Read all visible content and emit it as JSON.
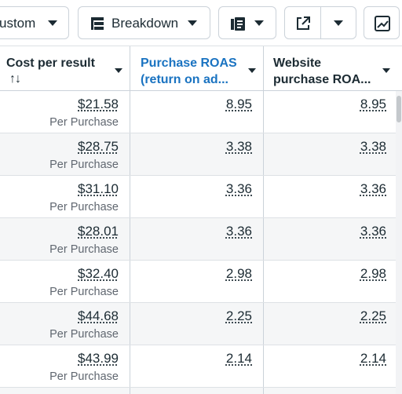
{
  "toolbar": {
    "custom_label": "ustom",
    "breakdown_label": "Breakdown"
  },
  "columns": {
    "col1_title": "Cost per result",
    "col1_sort": "↑↓",
    "col2_title_line1": "Purchase ROAS",
    "col2_title_line2": "(return on ad...",
    "col3_title_line1": "Website",
    "col3_title_line2": "purchase ROA..."
  },
  "rows": [
    {
      "cost": "$21.58",
      "cost_sub": "Per Purchase",
      "roas": "8.95",
      "website_roas": "8.95"
    },
    {
      "cost": "$28.75",
      "cost_sub": "Per Purchase",
      "roas": "3.38",
      "website_roas": "3.38"
    },
    {
      "cost": "$31.10",
      "cost_sub": "Per Purchase",
      "roas": "3.36",
      "website_roas": "3.36"
    },
    {
      "cost": "$28.01",
      "cost_sub": "Per Purchase",
      "roas": "3.36",
      "website_roas": "3.36"
    },
    {
      "cost": "$32.40",
      "cost_sub": "Per Purchase",
      "roas": "2.98",
      "website_roas": "2.98"
    },
    {
      "cost": "$44.68",
      "cost_sub": "Per Purchase",
      "roas": "2.25",
      "website_roas": "2.25"
    },
    {
      "cost": "$43.99",
      "cost_sub": "Per Purchase",
      "roas": "2.14",
      "website_roas": "2.14"
    }
  ],
  "colors": {
    "accent": "#1a73c1",
    "text": "#1c2b33",
    "subtext": "#606770",
    "alt_row": "#f5f6f7"
  },
  "icons": {
    "breakdown": "breakdown-icon",
    "reports": "reports-icon",
    "export": "export-icon",
    "charts": "chart-icon"
  }
}
